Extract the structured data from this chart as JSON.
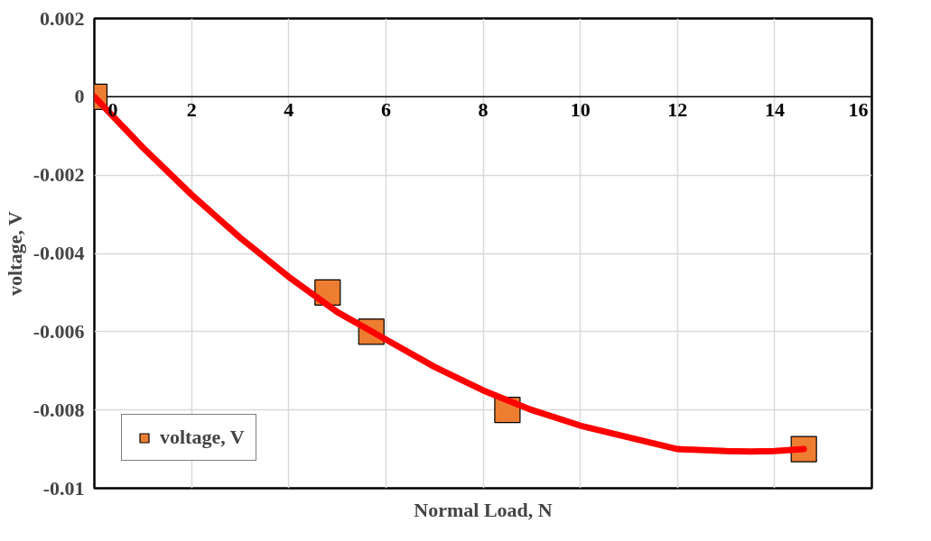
{
  "chart_data": {
    "type": "scatter",
    "xlabel": "Normal Load, N",
    "ylabel": "voltage, V",
    "xlim": [
      0,
      16
    ],
    "xticks": [
      0,
      2,
      4,
      6,
      8,
      10,
      12,
      14,
      16
    ],
    "ylim": [
      -0.01,
      0.002
    ],
    "yticks": [
      -0.01,
      -0.008,
      -0.006,
      -0.004,
      -0.002,
      0,
      0.002
    ],
    "grid": true,
    "legend": "bottom left",
    "marker": "square",
    "series": [
      {
        "name": "voltage, V",
        "color": "#ed7d31",
        "x": [
          0,
          4.8,
          5.7,
          8.5,
          14.6
        ],
        "values": [
          0,
          -0.005,
          -0.006,
          -0.008,
          -0.009
        ]
      },
      {
        "type": "line",
        "color": "#ff0000",
        "line_style": "solid",
        "marker": "none",
        "x": [
          0,
          1,
          2,
          3,
          4,
          5,
          6,
          7,
          8,
          9,
          10,
          11,
          12,
          13,
          13.5,
          14,
          14.6
        ],
        "values": [
          0,
          -0.0013,
          -0.0025,
          -0.0036,
          -0.0046,
          -0.0055,
          -0.0062,
          -0.0069,
          -0.0075,
          -0.008,
          -0.0084,
          -0.0087,
          -0.009,
          -0.00905,
          -0.00906,
          -0.00905,
          -0.009
        ]
      }
    ]
  }
}
